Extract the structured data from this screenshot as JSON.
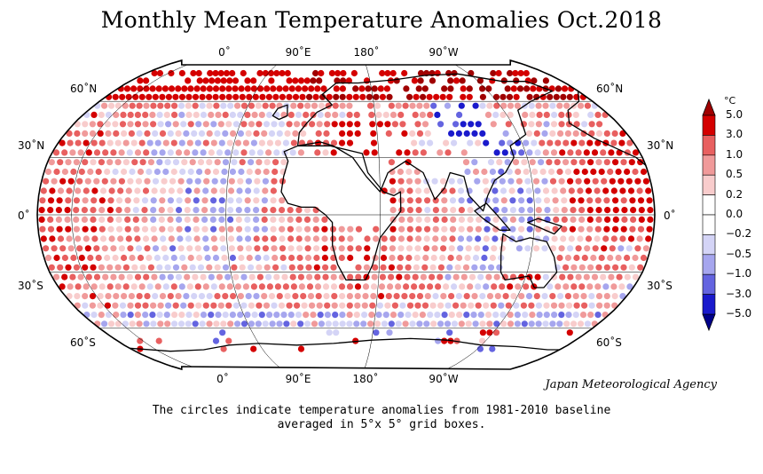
{
  "title": "Monthly Mean Temperature Anomalies Oct.2018",
  "lon_labels_top": [
    "0˚",
    "90˚E",
    "180˚",
    "90˚W"
  ],
  "lon_labels_bottom": [
    "0˚",
    "90˚E",
    "180˚",
    "90˚W"
  ],
  "lat_labels_left": [
    "60˚N",
    "30˚N",
    "0˚",
    "30˚S",
    "60˚S"
  ],
  "lat_labels_right": [
    "60˚N",
    "30˚N",
    "0˚",
    "30˚S",
    "60˚S"
  ],
  "agency": "Japan Meteorological Agency",
  "caption_line1": "The circles indicate temperature anomalies from 1981-2010 baseline",
  "caption_line2": "averaged in 5°x 5° grid boxes.",
  "legend": {
    "unit": "°C",
    "ticks": [
      "5.0",
      "3.0",
      "1.0",
      "0.5",
      "0.2",
      "0.0",
      "−0.2",
      "−0.5",
      "−1.0",
      "−3.0",
      "−5.0"
    ],
    "colors": [
      "#a00000",
      "#d40000",
      "#e86060",
      "#f09a9a",
      "#f8cccc",
      "#ffffff",
      "#d4d4f6",
      "#a6a6ee",
      "#6464e0",
      "#1a1acc",
      "#00008a"
    ]
  }
}
